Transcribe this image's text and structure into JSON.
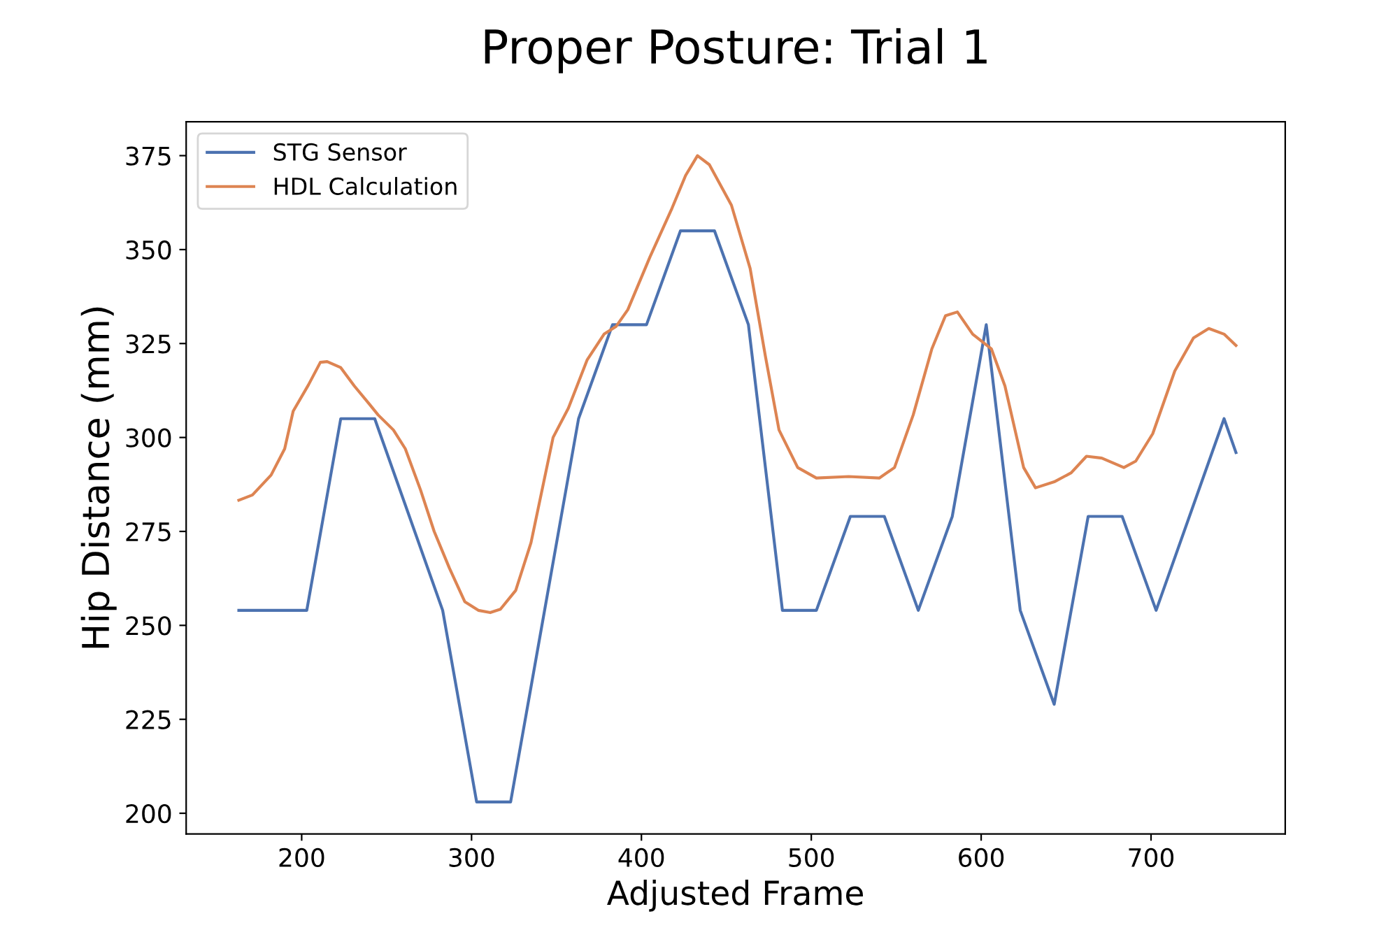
{
  "chart_data": {
    "type": "line",
    "title": "Proper Posture: Trial 1",
    "xlabel": "Adjusted Frame",
    "ylabel": "Hip Distance (mm)",
    "xlim": [
      132,
      779
    ],
    "ylim": [
      194.5,
      384
    ],
    "xticks": [
      200,
      300,
      400,
      500,
      600,
      700
    ],
    "yticks": [
      200,
      225,
      250,
      275,
      300,
      325,
      350,
      375
    ],
    "grid": false,
    "legend": "top left",
    "marker": "none",
    "line_style": "solid",
    "series": [
      {
        "name": "STG Sensor",
        "color": "#4c72b0",
        "x": [
          163,
          203,
          223,
          243,
          283,
          303,
          323,
          363,
          383,
          403,
          423,
          443,
          463,
          483,
          503,
          523,
          543,
          563,
          583,
          603,
          623,
          643,
          663,
          683,
          703,
          743,
          750
        ],
        "values": [
          254,
          254,
          305,
          305,
          254,
          203,
          203,
          305,
          330,
          330,
          355,
          355,
          330,
          254,
          254,
          279,
          279,
          254,
          279,
          330,
          254,
          229,
          279,
          279,
          254,
          305,
          296
        ]
      },
      {
        "name": "HDL Calculation",
        "color": "#dd8452",
        "x": [
          163,
          171,
          182,
          190,
          195,
          204,
          211,
          215,
          223,
          231,
          240,
          245,
          254,
          261,
          270,
          278,
          287,
          296,
          304,
          311,
          317,
          326,
          335,
          348,
          357,
          368,
          378,
          385,
          392,
          405,
          418,
          426,
          433,
          440,
          453,
          464,
          473,
          481,
          492,
          503,
          522,
          540,
          549,
          560,
          571,
          579,
          586,
          595,
          606,
          614,
          625,
          632,
          643,
          653,
          662,
          671,
          684,
          691,
          701,
          714,
          725,
          734,
          743,
          750
        ],
        "values": [
          283.3,
          284.7,
          290,
          297,
          307,
          314,
          320,
          320.2,
          318.6,
          313.7,
          308.8,
          306,
          302,
          297,
          286,
          275,
          265.2,
          256.3,
          254,
          253.4,
          254.3,
          259.3,
          272,
          300,
          307.8,
          320.6,
          327.5,
          329.5,
          334,
          348,
          361,
          369.7,
          375,
          372.6,
          361.8,
          345,
          321.6,
          302,
          292,
          289.2,
          289.6,
          289.2,
          292,
          306,
          323.6,
          332.4,
          333.4,
          327.5,
          323.6,
          313.7,
          292,
          286.6,
          288.2,
          290.6,
          295,
          294.5,
          292,
          293.7,
          301,
          317.7,
          326.5,
          329,
          327.5,
          324.5
        ]
      }
    ]
  }
}
